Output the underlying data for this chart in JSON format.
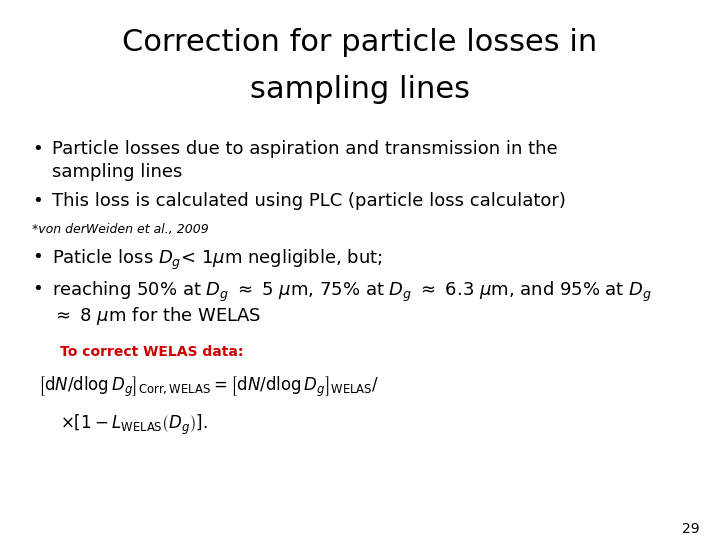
{
  "title_line1": "Correction for particle losses in",
  "title_line2": "sampling lines",
  "title_fontsize": 22,
  "title_color": "#000000",
  "background_color": "#ffffff",
  "bullet1_line1": "Particle losses due to aspiration and transmission in the",
  "bullet1_line2": "sampling lines",
  "bullet2": "This loss is calculated using PLC (particle loss calculator)",
  "footnote": "*von derWeiden et al., 2009",
  "correct_label": "To correct WELAS data:",
  "correct_color": "#cc0000",
  "page_number": "29",
  "title_fontsize_pt": 22,
  "body_fontsize": 13,
  "footnote_fontsize": 9,
  "page_fontsize": 10
}
